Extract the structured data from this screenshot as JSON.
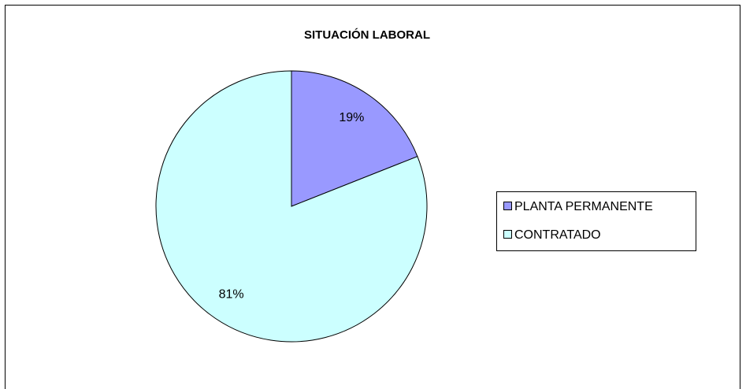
{
  "chart_data": {
    "type": "pie",
    "title": "SITUACIÓN  LABORAL",
    "categories": [
      "PLANTA  PERMANENTE",
      "CONTRATADO"
    ],
    "values": [
      19,
      81
    ],
    "value_labels": [
      "19%",
      "81%"
    ],
    "colors": [
      "#9999ff",
      "#ccffff"
    ],
    "legend": "right"
  }
}
